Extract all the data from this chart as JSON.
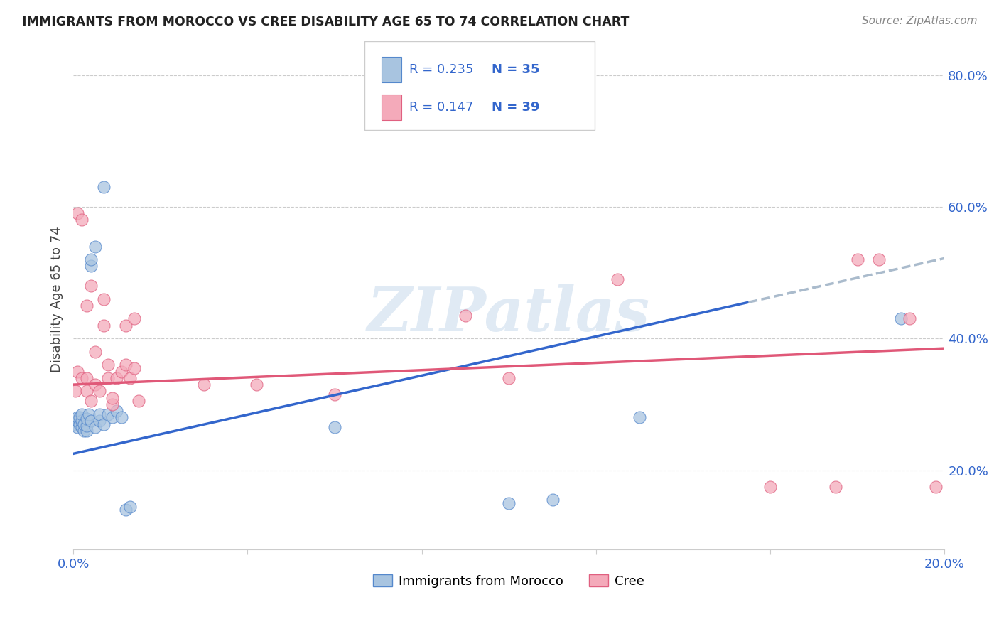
{
  "title": "IMMIGRANTS FROM MOROCCO VS CREE DISABILITY AGE 65 TO 74 CORRELATION CHART",
  "source": "Source: ZipAtlas.com",
  "ylabel": "Disability Age 65 to 74",
  "xlim": [
    0.0,
    0.2
  ],
  "ylim": [
    0.08,
    0.84
  ],
  "xticks": [
    0.0,
    0.04,
    0.08,
    0.12,
    0.16,
    0.2
  ],
  "xtick_labels": [
    "0.0%",
    "",
    "",
    "",
    "",
    "20.0%"
  ],
  "ytick_pos": [
    0.2,
    0.4,
    0.6,
    0.8
  ],
  "ytick_labels": [
    "20.0%",
    "40.0%",
    "60.0%",
    "80.0%"
  ],
  "legend_r1": "0.235",
  "legend_n1": "35",
  "legend_r2": "0.147",
  "legend_n2": "39",
  "blue_fill": "#A8C4E0",
  "pink_fill": "#F4AABA",
  "blue_edge": "#5588CC",
  "pink_edge": "#E06080",
  "blue_line": "#3366CC",
  "pink_line": "#E05878",
  "dash_line": "#AABBCC",
  "watermark": "ZIPatlas",
  "text_color": "#3366CC",
  "grid_color": "#CCCCCC",
  "morocco_x": [
    0.0005,
    0.001,
    0.001,
    0.001,
    0.0015,
    0.0015,
    0.002,
    0.002,
    0.002,
    0.0025,
    0.0025,
    0.003,
    0.003,
    0.003,
    0.0035,
    0.004,
    0.004,
    0.004,
    0.005,
    0.005,
    0.006,
    0.006,
    0.007,
    0.007,
    0.008,
    0.009,
    0.01,
    0.011,
    0.012,
    0.013,
    0.06,
    0.1,
    0.11,
    0.13,
    0.19
  ],
  "morocco_y": [
    0.27,
    0.265,
    0.275,
    0.28,
    0.27,
    0.28,
    0.265,
    0.275,
    0.285,
    0.26,
    0.27,
    0.26,
    0.268,
    0.278,
    0.285,
    0.275,
    0.51,
    0.52,
    0.54,
    0.265,
    0.275,
    0.285,
    0.63,
    0.27,
    0.285,
    0.28,
    0.29,
    0.28,
    0.14,
    0.145,
    0.265,
    0.15,
    0.155,
    0.28,
    0.43
  ],
  "cree_x": [
    0.0005,
    0.001,
    0.001,
    0.002,
    0.002,
    0.003,
    0.003,
    0.003,
    0.004,
    0.004,
    0.005,
    0.005,
    0.006,
    0.007,
    0.007,
    0.008,
    0.008,
    0.009,
    0.009,
    0.01,
    0.011,
    0.012,
    0.012,
    0.013,
    0.014,
    0.014,
    0.015,
    0.03,
    0.042,
    0.06,
    0.09,
    0.1,
    0.125,
    0.16,
    0.175,
    0.18,
    0.185,
    0.192,
    0.198
  ],
  "cree_y": [
    0.32,
    0.59,
    0.35,
    0.34,
    0.58,
    0.32,
    0.45,
    0.34,
    0.305,
    0.48,
    0.33,
    0.38,
    0.32,
    0.42,
    0.46,
    0.34,
    0.36,
    0.3,
    0.31,
    0.34,
    0.35,
    0.42,
    0.36,
    0.34,
    0.355,
    0.43,
    0.305,
    0.33,
    0.33,
    0.315,
    0.435,
    0.34,
    0.49,
    0.175,
    0.175,
    0.52,
    0.52,
    0.43,
    0.175
  ]
}
